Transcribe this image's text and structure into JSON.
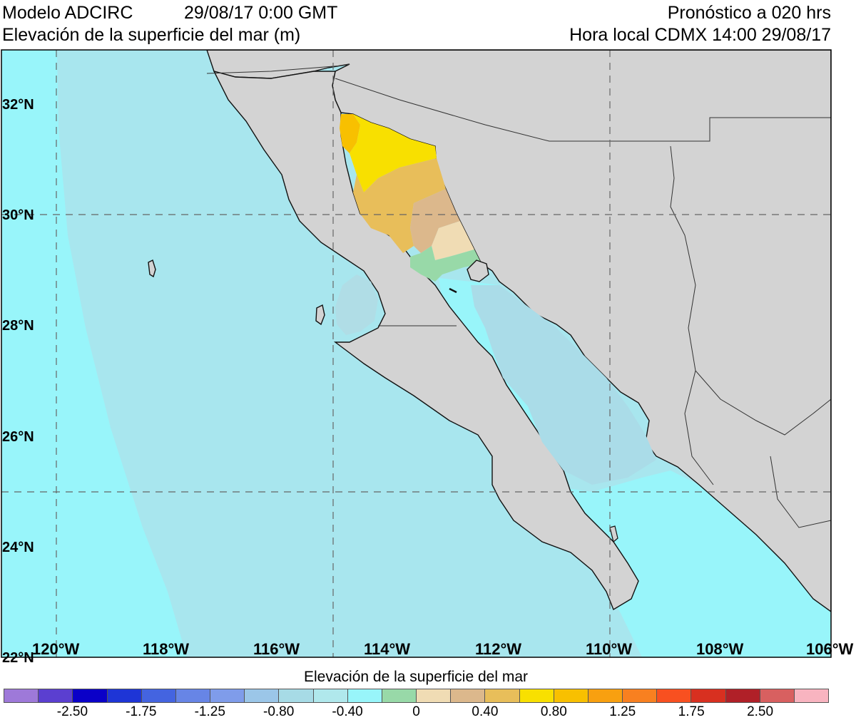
{
  "header": {
    "model": "Modelo ADCIRC",
    "datetime": "29/08/17 0:00 GMT",
    "variable": "Elevación de la superficie del mar (m)",
    "forecast": "Pronóstico a 020 hrs",
    "local_time": "Hora local CDMX 14:00 29/08/17"
  },
  "map": {
    "lat_labels": [
      "32°N",
      "30°N",
      "28°N",
      "26°N",
      "24°N",
      "22°N"
    ],
    "lon_labels": [
      "120°W",
      "118°W",
      "116°W",
      "114°W",
      "112°W",
      "110°W",
      "108°W",
      "106°W"
    ],
    "land_color": "#d3d3d3",
    "ocean_open_color": "#98f5fa",
    "ocean_shelf_color": "#a8e6ee"
  },
  "colorbar": {
    "title": "Elevación de la superficie del mar",
    "colors": [
      "#9e79d9",
      "#5b3fd0",
      "#0a00c8",
      "#1e35d6",
      "#4464e0",
      "#6785e6",
      "#7f9cea",
      "#9bc6e8",
      "#a7dbe6",
      "#b0e8ec",
      "#98f5fa",
      "#98d9a8",
      "#f0dcb4",
      "#dcb88c",
      "#e8be5a",
      "#f8e000",
      "#f8c000",
      "#f8a010",
      "#f88020",
      "#f85020",
      "#d83020",
      "#b02028",
      "#d86060",
      "#f8b4c0"
    ],
    "tick_labels": [
      "-2.50",
      "-1.75",
      "-1.25",
      "-0.80",
      "-0.40",
      "0",
      "0.40",
      "0.80",
      "1.25",
      "1.75",
      "2.50"
    ]
  }
}
